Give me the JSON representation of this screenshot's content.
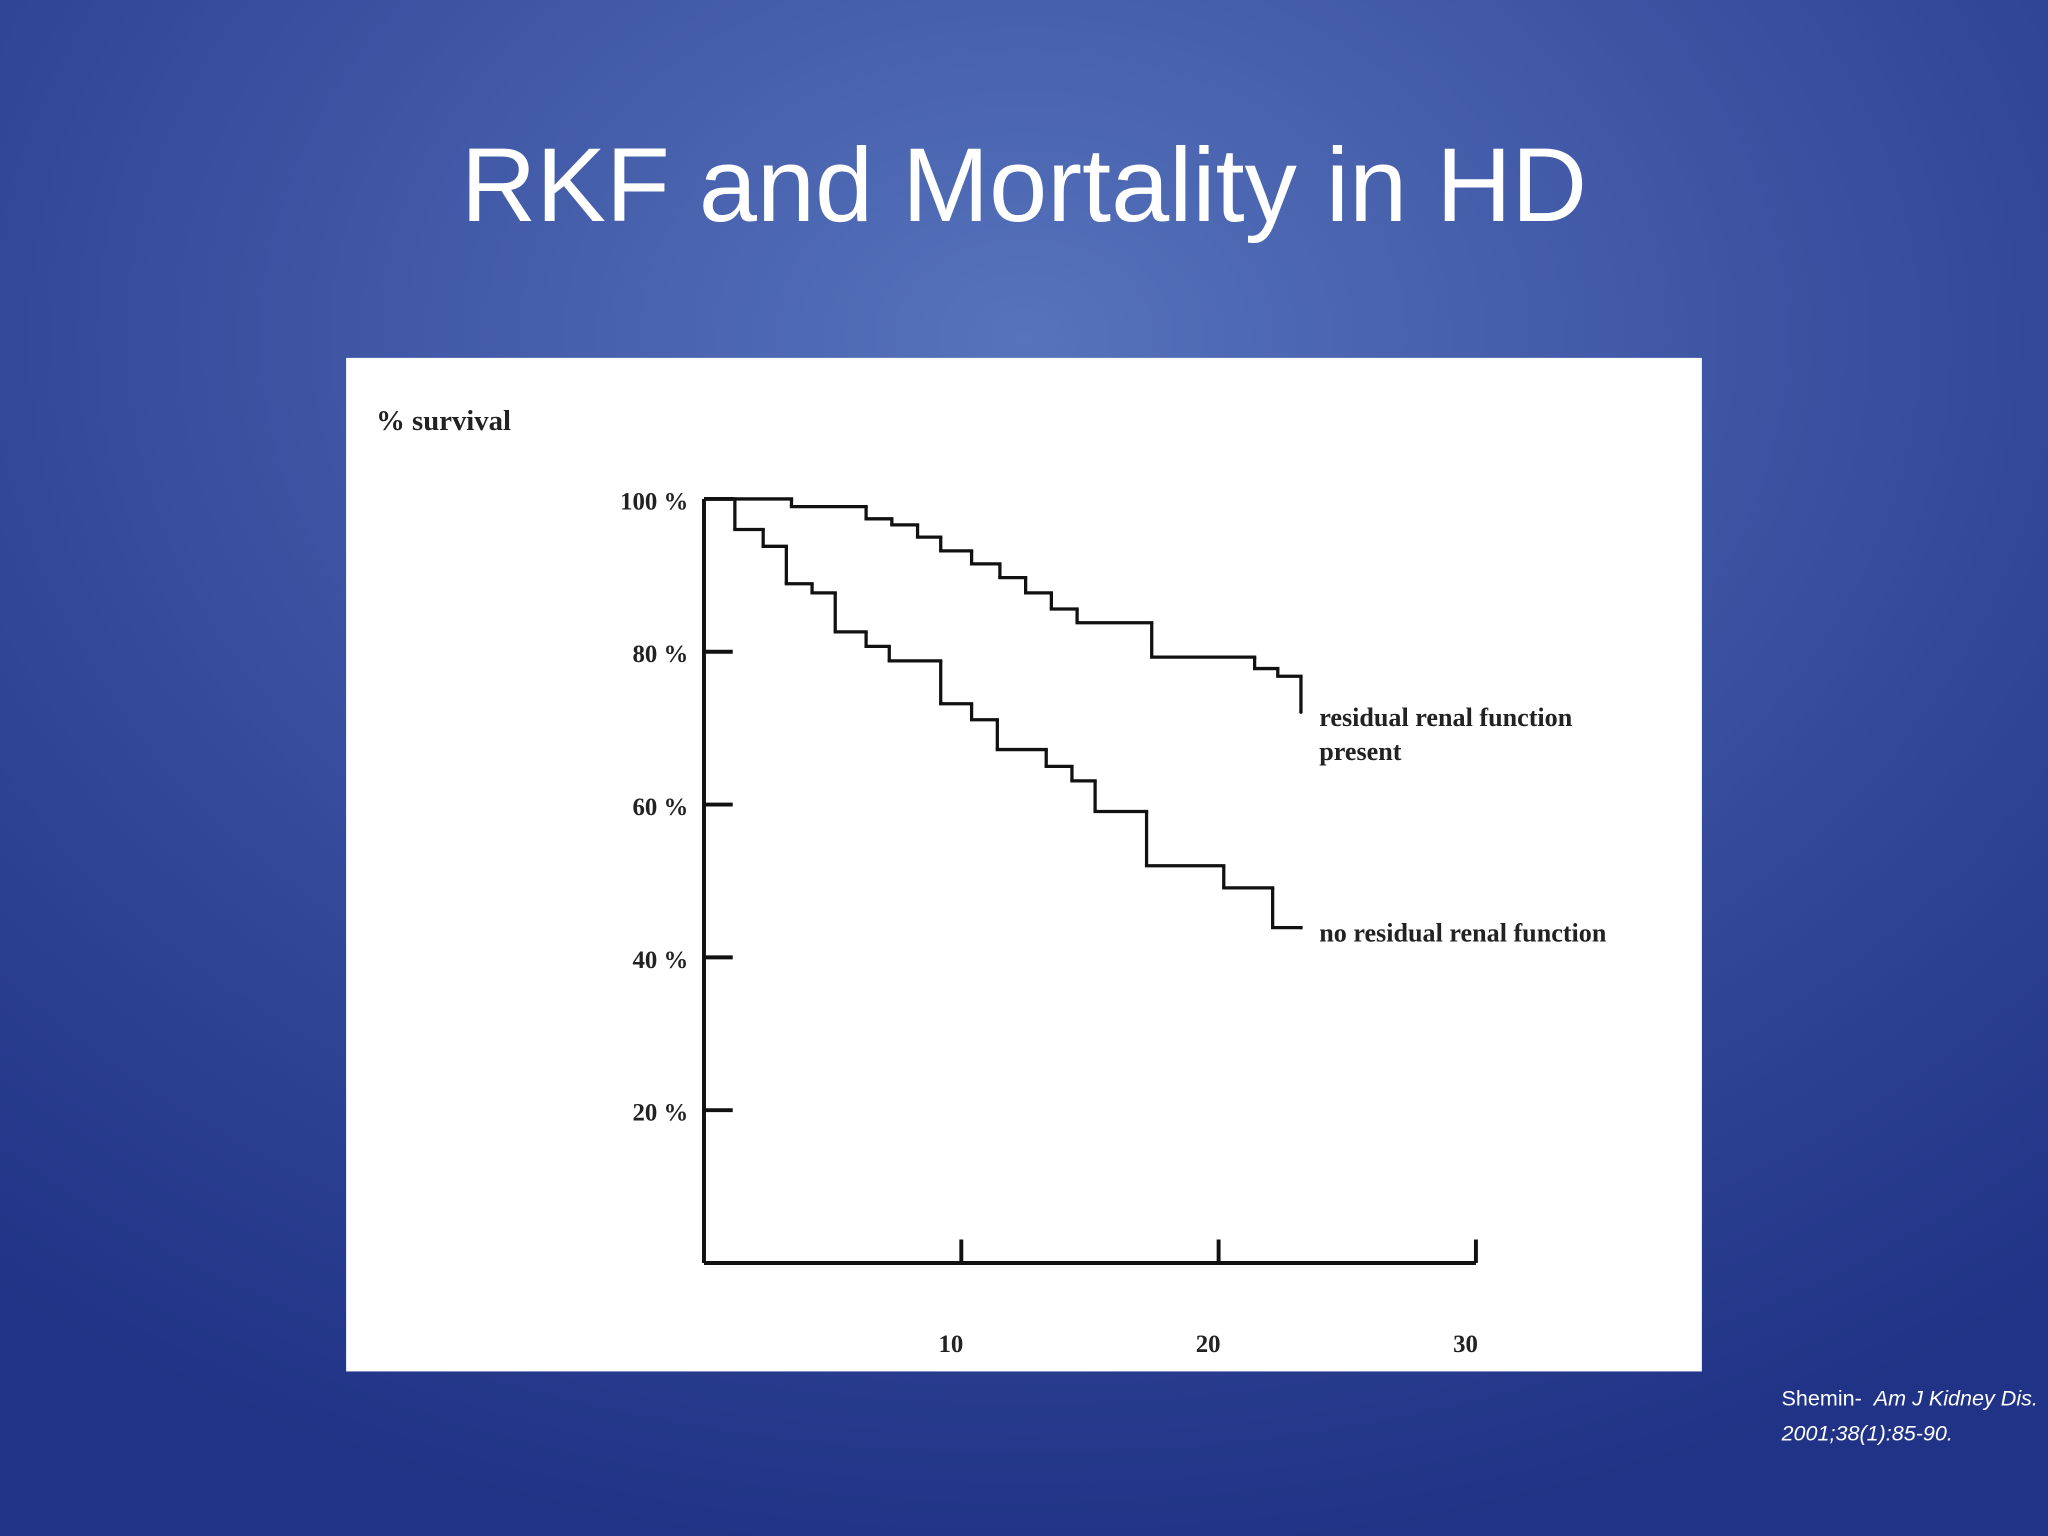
{
  "chart_data": {
    "type": "line",
    "drawstyle": "steps-post",
    "title": "RKF and Mortality in HD",
    "ylabel": "% survival",
    "xlim": [
      0,
      30
    ],
    "ylim": [
      0,
      100
    ],
    "xticks": [
      10,
      20,
      30
    ],
    "yticks": [
      {
        "value": 20,
        "label": "20 %"
      },
      {
        "value": 40,
        "label": "40 %"
      },
      {
        "value": 60,
        "label": "60 %"
      },
      {
        "value": 80,
        "label": "80 %"
      },
      {
        "value": 100,
        "label": "100 %"
      }
    ],
    "series": [
      {
        "name": "residual renal function present",
        "color": "#111111",
        "x": [
          0.3,
          3.4,
          6.3,
          7.3,
          8.3,
          9.2,
          10.4,
          11.5,
          12.5,
          13.5,
          14.5,
          17.4,
          21.4,
          22.3,
          23.2
        ],
        "values": [
          100,
          99,
          97.4,
          96.6,
          95,
          93.2,
          91.5,
          89.7,
          87.7,
          85.6,
          83.8,
          79.3,
          77.8,
          76.8,
          72.1
        ]
      },
      {
        "name": "no residual renal function",
        "color": "#111111",
        "x": [
          0.3,
          1.2,
          2.3,
          3.2,
          4.2,
          5.1,
          6.3,
          7.2,
          9.2,
          10.4,
          11.4,
          13.3,
          14.3,
          15.2,
          17.2,
          20.2,
          22.1,
          23.2
        ],
        "values": [
          100,
          96,
          93.8,
          88.9,
          87.7,
          82.6,
          80.7,
          78.8,
          73.2,
          71.1,
          67.2,
          65,
          63.1,
          59.1,
          52,
          49.1,
          43.9,
          43.9
        ]
      }
    ],
    "citation": {
      "author": "Shemin-",
      "source": "Am J Kidney Dis. 2001;38(1):85-90."
    }
  }
}
